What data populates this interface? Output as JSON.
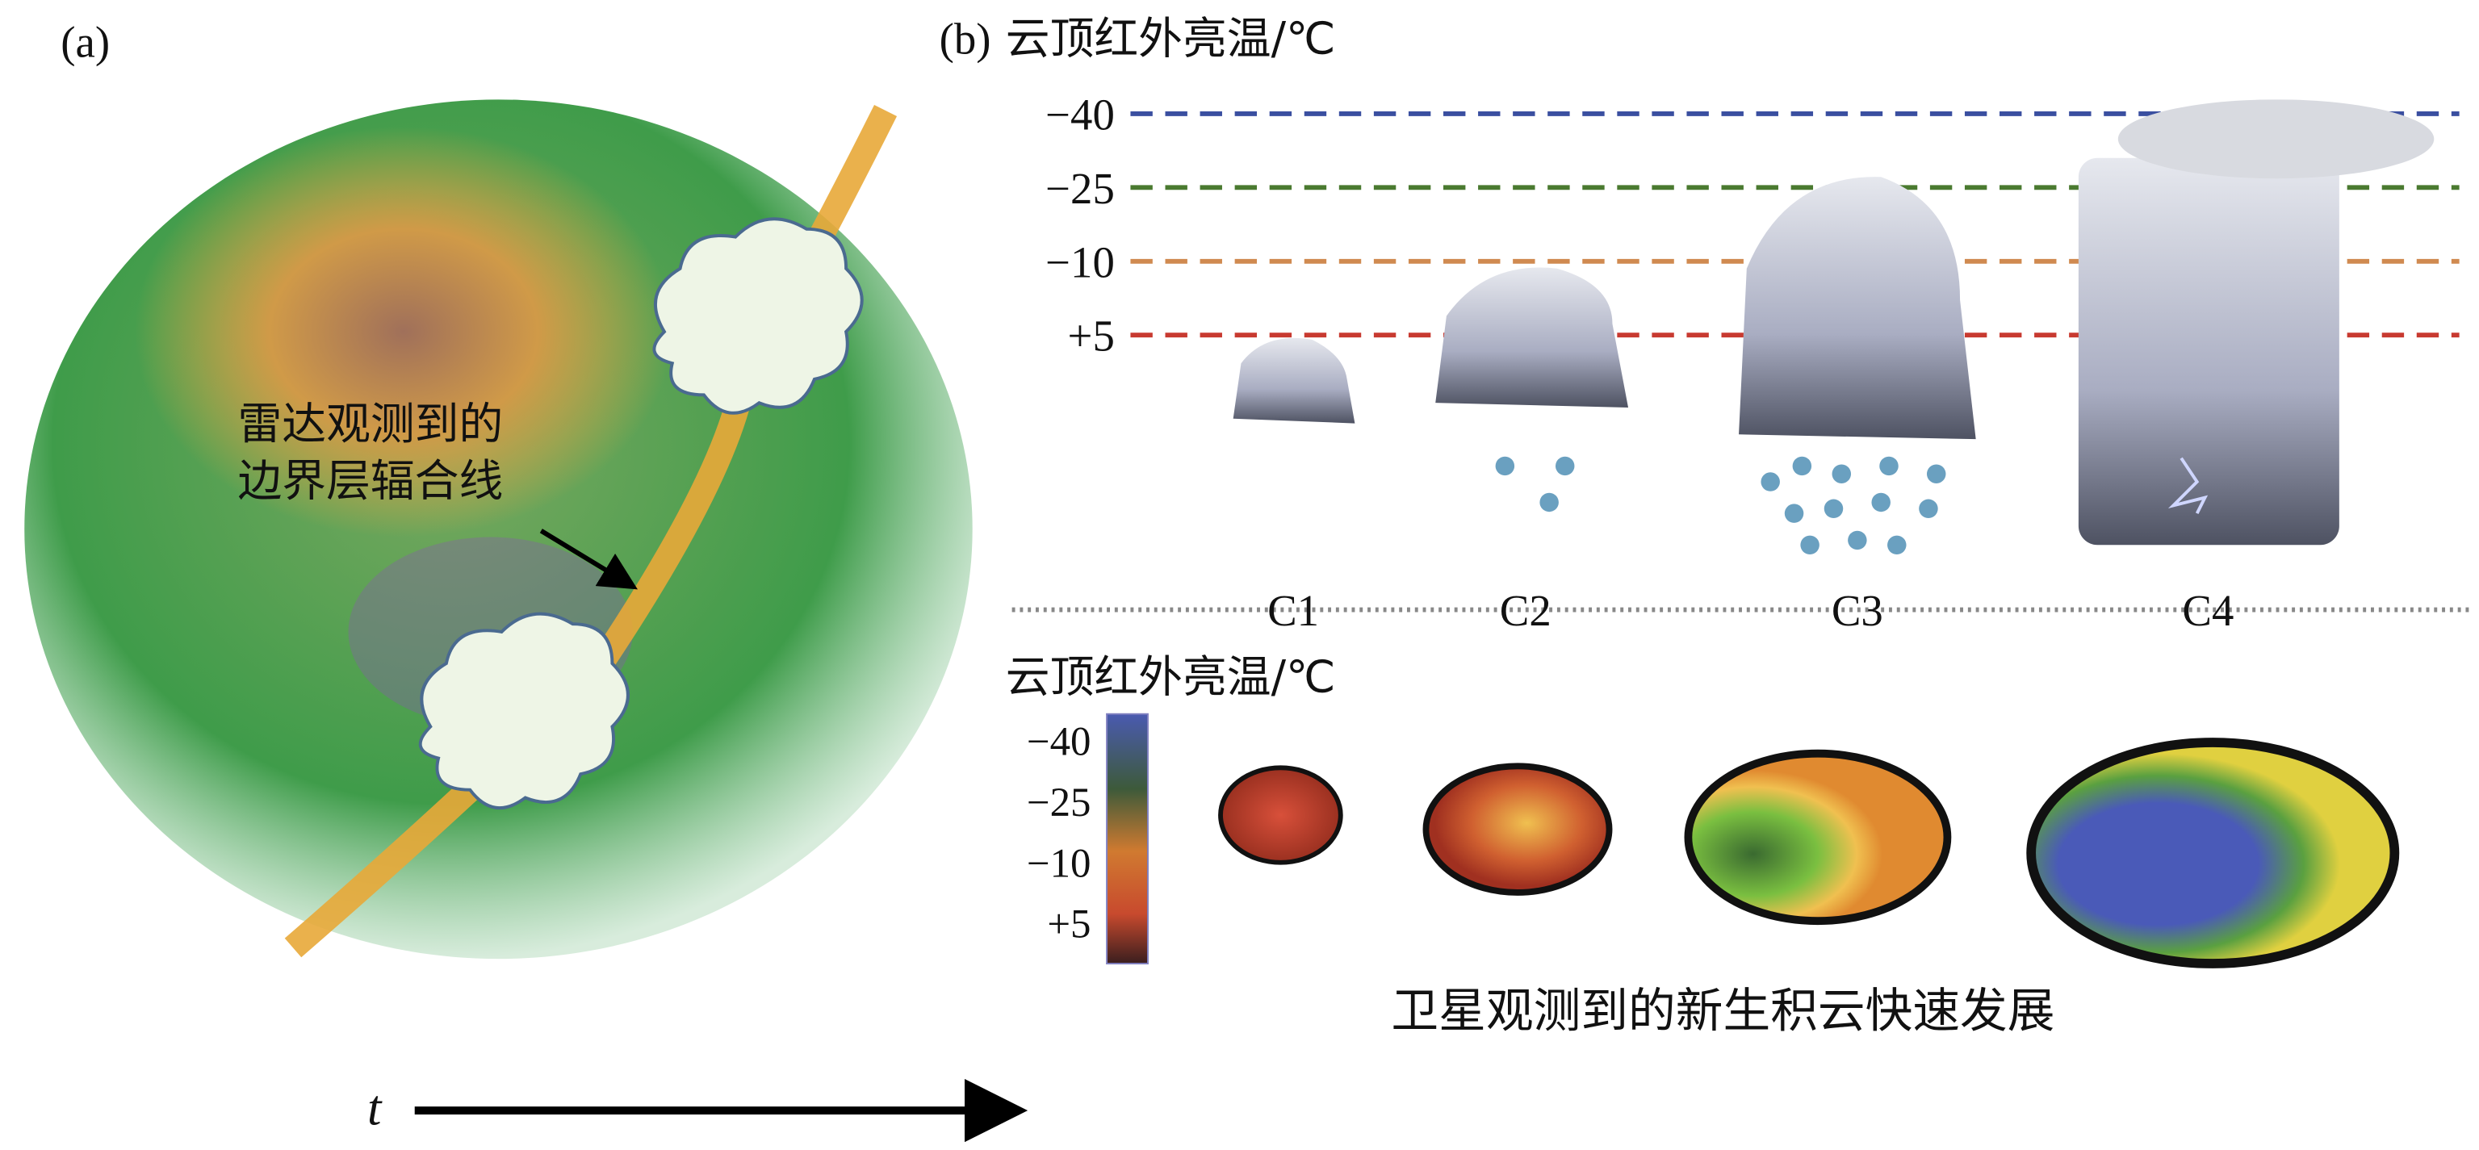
{
  "panel_a": {
    "label": "(a)",
    "annotation": [
      "雷达观测到的",
      "边界层辐合线"
    ],
    "time_label": "t"
  },
  "panel_b": {
    "label": "(b)",
    "top_title": "云顶红外亮温/℃",
    "levels": [
      "−40",
      "−25",
      "−10",
      "+5"
    ],
    "stages": [
      "C1",
      "C2",
      "C3",
      "C4"
    ],
    "colorbar_title": "云顶红外亮温/℃",
    "colorbar_labels": [
      "−40",
      "−25",
      "−10",
      "+5"
    ],
    "caption": "卫星观测到的新生积云快速发展"
  }
}
